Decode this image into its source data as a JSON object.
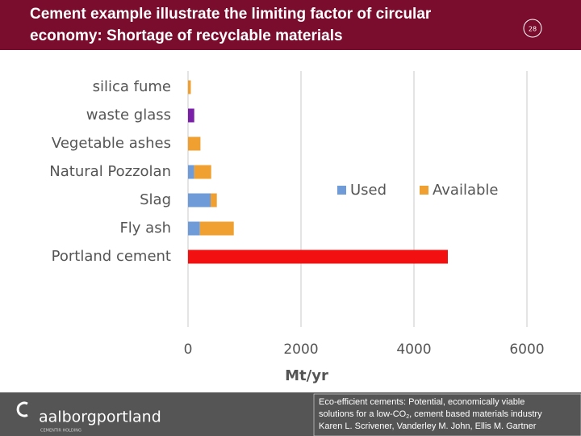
{
  "header": {
    "title_lines": [
      "Cement example illustrate the limiting factor of circular",
      "economy: Shortage of recyclable materials"
    ],
    "page_number": "28"
  },
  "chart_data": {
    "type": "bar",
    "orientation": "horizontal",
    "stacked": true,
    "categories": [
      "silica fume",
      "waste glass",
      "Vegetable ashes",
      "Natural Pozzolan",
      "Slag",
      "Fly ash",
      "Portland cement"
    ],
    "series": [
      {
        "name": "Used",
        "color": "#6f9bd8",
        "colors": [
          "#6f9bd8",
          "#7a1fa8",
          "#6f9bd8",
          "#6f9bd8",
          "#6f9bd8",
          "#6f9bd8",
          "#f21010"
        ],
        "values": [
          0,
          110,
          0,
          110,
          400,
          210,
          4600
        ]
      },
      {
        "name": "Available",
        "color": "#f0a030",
        "values": [
          50,
          0,
          220,
          300,
          110,
          600,
          0
        ]
      }
    ],
    "xlim": [
      0,
      6000
    ],
    "xticks": [
      0,
      2000,
      4000,
      6000
    ],
    "xlabel": "Mt/yr",
    "grid": true
  },
  "footer": {
    "logo": "aalborgportland",
    "logo_sub": "CEMENTIR HOLDING",
    "reference": {
      "line1": "Eco-efficient cements: Potential, economically viable",
      "line2_a": "solutions for a low-CO",
      "line2_sub": "2",
      "line2_b": ", cement based materials industry",
      "line3": "Karen L. Scrivener, Vanderley M. John, Ellis M. Gartner"
    }
  }
}
